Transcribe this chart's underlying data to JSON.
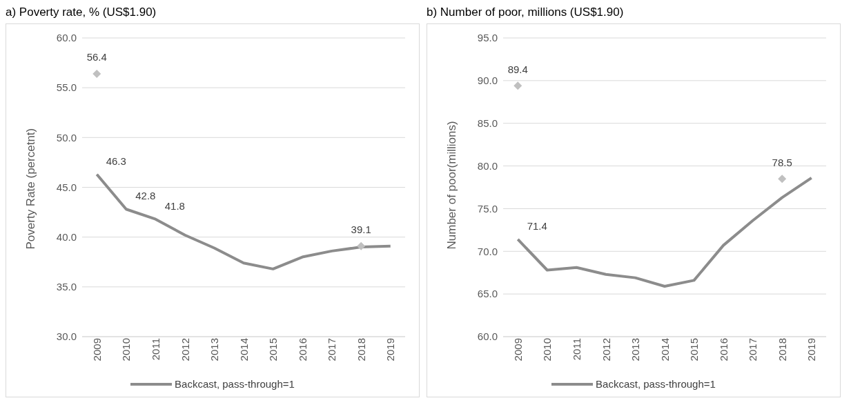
{
  "chart_data": [
    {
      "type": "line",
      "title": "a) Poverty rate, % (US$1.90)",
      "ylabel": "Poverty Rate (percetnt)",
      "categories": [
        "2009",
        "2010",
        "2011",
        "2012",
        "2013",
        "2014",
        "2015",
        "2016",
        "2017",
        "2018",
        "2019"
      ],
      "series": [
        {
          "name": "Backcast, pass-through=1",
          "color": "#8c8c8c",
          "values": [
            46.3,
            42.8,
            41.8,
            40.2,
            38.9,
            37.4,
            36.8,
            38.0,
            38.6,
            39.0,
            39.1
          ],
          "value_labels": [
            "46.3",
            "42.8",
            "41.8",
            null,
            null,
            null,
            null,
            null,
            null,
            null,
            null
          ]
        },
        {
          "type": "scatter",
          "marker": "diamond",
          "color": "#c0c0c0",
          "values": [
            56.4,
            null,
            null,
            null,
            null,
            null,
            null,
            null,
            null,
            39.1,
            null
          ],
          "value_labels": [
            "56.4",
            null,
            null,
            null,
            null,
            null,
            null,
            null,
            null,
            "39.1",
            null
          ]
        }
      ],
      "ylim": [
        30,
        60
      ],
      "yticks": [
        {
          "value": 30,
          "label": "30.0"
        },
        {
          "value": 35,
          "label": "35.0"
        },
        {
          "value": 40,
          "label": "40.0"
        },
        {
          "value": 45,
          "label": "45.0"
        },
        {
          "value": 50,
          "label": "50.0"
        },
        {
          "value": 55,
          "label": "55.0"
        },
        {
          "value": 60,
          "label": "60.0"
        }
      ],
      "grid": "y",
      "legend": "bottom",
      "marker": "none"
    },
    {
      "type": "line",
      "title": "b) Number of poor, millions (US$1.90)",
      "ylabel": "Number of poor(millions)",
      "categories": [
        "2009",
        "2010",
        "2011",
        "2012",
        "2013",
        "2014",
        "2015",
        "2016",
        "2017",
        "2018",
        "2019"
      ],
      "series": [
        {
          "name": "Backcast, pass-through=1",
          "color": "#8c8c8c",
          "values": [
            71.4,
            67.8,
            68.1,
            67.3,
            66.9,
            65.9,
            66.6,
            70.7,
            73.6,
            76.3,
            78.6
          ],
          "value_labels": [
            "71.4",
            null,
            null,
            null,
            null,
            null,
            null,
            null,
            null,
            null,
            null
          ]
        },
        {
          "type": "scatter",
          "marker": "diamond",
          "color": "#c0c0c0",
          "values": [
            89.4,
            null,
            null,
            null,
            null,
            null,
            null,
            null,
            null,
            78.5,
            null
          ],
          "value_labels": [
            "89.4",
            null,
            null,
            null,
            null,
            null,
            null,
            null,
            null,
            "78.5",
            null
          ]
        }
      ],
      "ylim": [
        60,
        95
      ],
      "yticks": [
        {
          "value": 60,
          "label": "60.0"
        },
        {
          "value": 65,
          "label": "65.0"
        },
        {
          "value": 70,
          "label": "70.0"
        },
        {
          "value": 75,
          "label": "75.0"
        },
        {
          "value": 80,
          "label": "80.0"
        },
        {
          "value": 85,
          "label": "85.0"
        },
        {
          "value": 90,
          "label": "90.0"
        },
        {
          "value": 95,
          "label": "95.0"
        }
      ],
      "grid": "y",
      "legend": "bottom",
      "marker": "none"
    }
  ]
}
